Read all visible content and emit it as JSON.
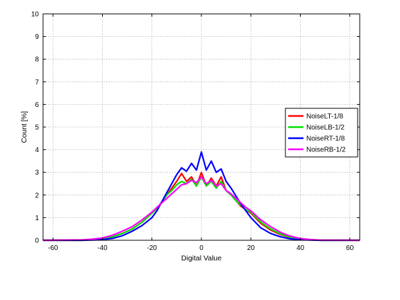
{
  "chart_data": {
    "type": "line",
    "xlabel": "Digital Value",
    "ylabel": "Count [%]",
    "xlim": [
      -64,
      64
    ],
    "ylim": [
      0,
      10
    ],
    "xticks": [
      -60,
      -40,
      -20,
      0,
      20,
      40,
      60
    ],
    "yticks": [
      0,
      1,
      2,
      3,
      4,
      5,
      6,
      7,
      8,
      9,
      10
    ],
    "grid": true,
    "legend_position": "right, middle",
    "series": [
      {
        "name": "NoiseLT-1/8",
        "color": "#ff0000",
        "x": [
          -64,
          -48,
          -44,
          -40,
          -36,
          -32,
          -28,
          -24,
          -20,
          -18,
          -16,
          -14,
          -12,
          -10,
          -8,
          -6,
          -4,
          -2,
          0,
          2,
          4,
          6,
          8,
          10,
          12,
          14,
          16,
          18,
          20,
          24,
          28,
          32,
          36,
          40,
          44,
          48,
          64
        ],
        "y": [
          0,
          0,
          0.03,
          0.05,
          0.15,
          0.3,
          0.5,
          0.8,
          1.2,
          1.4,
          1.7,
          2.0,
          2.3,
          2.6,
          2.95,
          2.6,
          2.8,
          2.4,
          3.0,
          2.4,
          2.75,
          2.4,
          2.8,
          2.2,
          2.0,
          1.75,
          1.5,
          1.35,
          1.2,
          0.75,
          0.45,
          0.25,
          0.12,
          0.05,
          0.02,
          0,
          0
        ]
      },
      {
        "name": "NoiseLB-1/2",
        "color": "#00e000",
        "x": [
          -64,
          -48,
          -44,
          -40,
          -36,
          -32,
          -28,
          -24,
          -20,
          -18,
          -16,
          -14,
          -12,
          -10,
          -8,
          -6,
          -4,
          -2,
          0,
          2,
          4,
          6,
          8,
          10,
          12,
          14,
          16,
          18,
          20,
          24,
          28,
          32,
          36,
          40,
          44,
          48,
          64
        ],
        "y": [
          0,
          0,
          0.03,
          0.05,
          0.15,
          0.3,
          0.5,
          0.8,
          1.2,
          1.4,
          1.7,
          2.0,
          2.2,
          2.45,
          2.6,
          2.5,
          2.7,
          2.4,
          2.8,
          2.4,
          2.6,
          2.3,
          2.6,
          2.2,
          2.0,
          1.75,
          1.55,
          1.35,
          1.25,
          0.8,
          0.5,
          0.28,
          0.13,
          0.05,
          0.02,
          0,
          0
        ]
      },
      {
        "name": "NoiseRT-1/8",
        "color": "#0000ff",
        "x": [
          -64,
          -48,
          -44,
          -40,
          -36,
          -32,
          -28,
          -24,
          -20,
          -18,
          -16,
          -14,
          -12,
          -10,
          -8,
          -6,
          -4,
          -2,
          0,
          2,
          4,
          6,
          8,
          10,
          12,
          14,
          16,
          18,
          20,
          24,
          28,
          32,
          36,
          40,
          44,
          48,
          64
        ],
        "y": [
          0,
          0,
          0.01,
          0.03,
          0.08,
          0.2,
          0.4,
          0.65,
          1.0,
          1.3,
          1.7,
          2.1,
          2.5,
          2.9,
          3.2,
          3.05,
          3.4,
          3.1,
          3.9,
          3.1,
          3.5,
          3.0,
          3.15,
          2.6,
          2.3,
          1.95,
          1.6,
          1.3,
          1.0,
          0.55,
          0.3,
          0.15,
          0.06,
          0.02,
          0.01,
          0,
          0
        ]
      },
      {
        "name": "NoiseRB-1/2",
        "color": "#ff00ff",
        "x": [
          -64,
          -48,
          -44,
          -40,
          -36,
          -32,
          -28,
          -24,
          -20,
          -18,
          -16,
          -14,
          -12,
          -10,
          -8,
          -6,
          -4,
          -2,
          0,
          2,
          4,
          6,
          8,
          10,
          12,
          14,
          16,
          18,
          20,
          24,
          28,
          32,
          36,
          40,
          44,
          48,
          64
        ],
        "y": [
          0,
          0.02,
          0.05,
          0.1,
          0.22,
          0.4,
          0.6,
          0.9,
          1.25,
          1.45,
          1.65,
          1.85,
          2.05,
          2.25,
          2.45,
          2.5,
          2.65,
          2.55,
          2.8,
          2.5,
          2.65,
          2.4,
          2.5,
          2.2,
          2.05,
          1.85,
          1.65,
          1.45,
          1.3,
          0.9,
          0.6,
          0.35,
          0.18,
          0.08,
          0.03,
          0.01,
          0
        ]
      }
    ]
  }
}
